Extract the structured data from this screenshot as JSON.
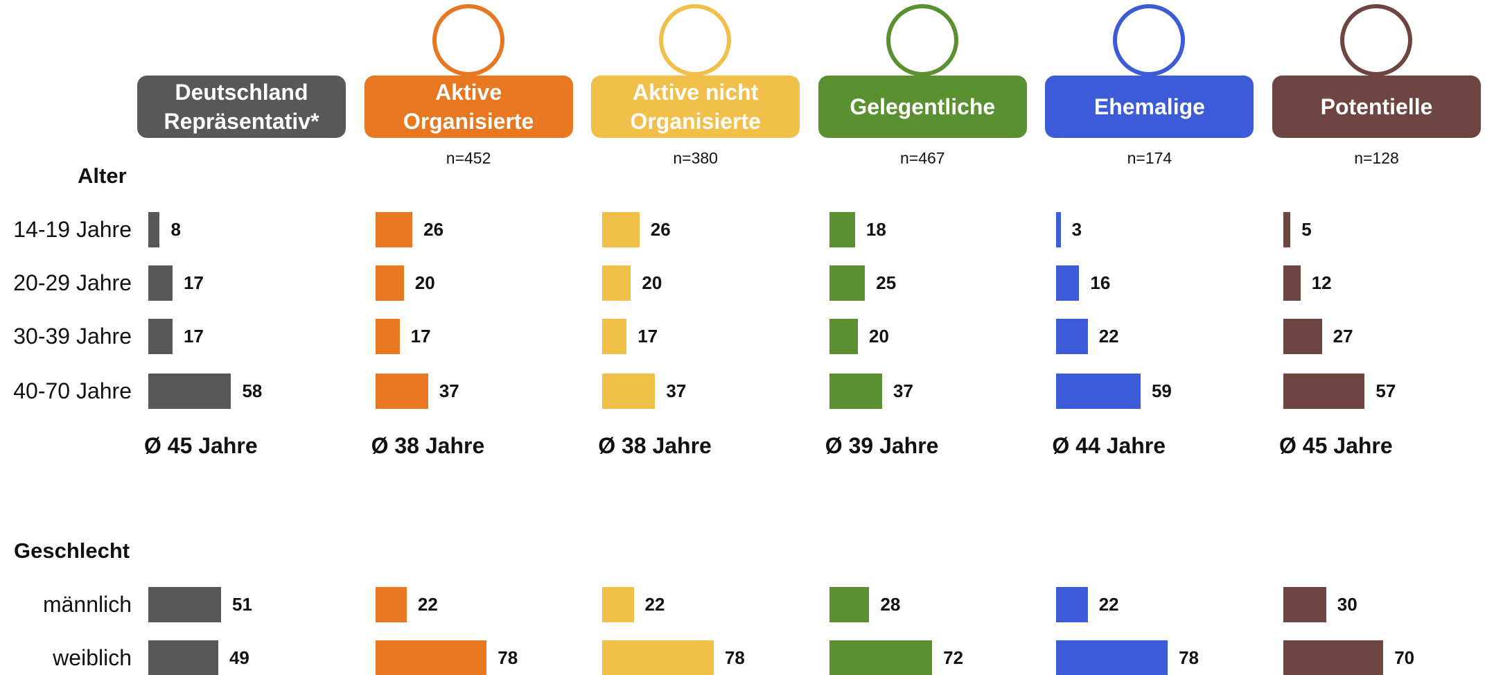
{
  "chart_data": {
    "type": "bar",
    "sections": [
      {
        "title": "Alter",
        "rows": [
          "14-19 Jahre",
          "20-29 Jahre",
          "30-39 Jahre",
          "40-70 Jahre"
        ]
      },
      {
        "title": "Geschlecht",
        "rows": [
          "männlich",
          "weiblich"
        ]
      }
    ],
    "series": [
      {
        "name": "Deutschland Repräsentativ*",
        "color": "#58585a",
        "n": null,
        "average": "Ø 45 Jahre",
        "values": [
          [
            8,
            17,
            17,
            58
          ],
          [
            51,
            49
          ]
        ]
      },
      {
        "name": "Aktive Organisierte",
        "color": "#e87722",
        "n": "n=452",
        "average": "Ø 38 Jahre",
        "values": [
          [
            26,
            20,
            17,
            37
          ],
          [
            22,
            78
          ]
        ]
      },
      {
        "name": "Aktive nicht Organisierte",
        "color": "#f2bf4a",
        "n": "n=380",
        "average": "Ø 38 Jahre",
        "values": [
          [
            26,
            20,
            17,
            37
          ],
          [
            22,
            78
          ]
        ]
      },
      {
        "name": "Gelegentliche",
        "color": "#5a9030",
        "n": "n=467",
        "average": "Ø 39 Jahre",
        "values": [
          [
            18,
            25,
            20,
            37
          ],
          [
            28,
            72
          ]
        ]
      },
      {
        "name": "Ehemalige",
        "color": "#3c5bd6",
        "n": "n=174",
        "average": "Ø 44 Jahre",
        "values": [
          [
            3,
            16,
            22,
            59
          ],
          [
            22,
            78
          ]
        ]
      },
      {
        "name": "Potentielle",
        "color": "#6e4540",
        "n": "n=128",
        "average": "Ø 45 Jahre",
        "values": [
          [
            5,
            12,
            27,
            57
          ],
          [
            30,
            70
          ]
        ]
      }
    ]
  }
}
